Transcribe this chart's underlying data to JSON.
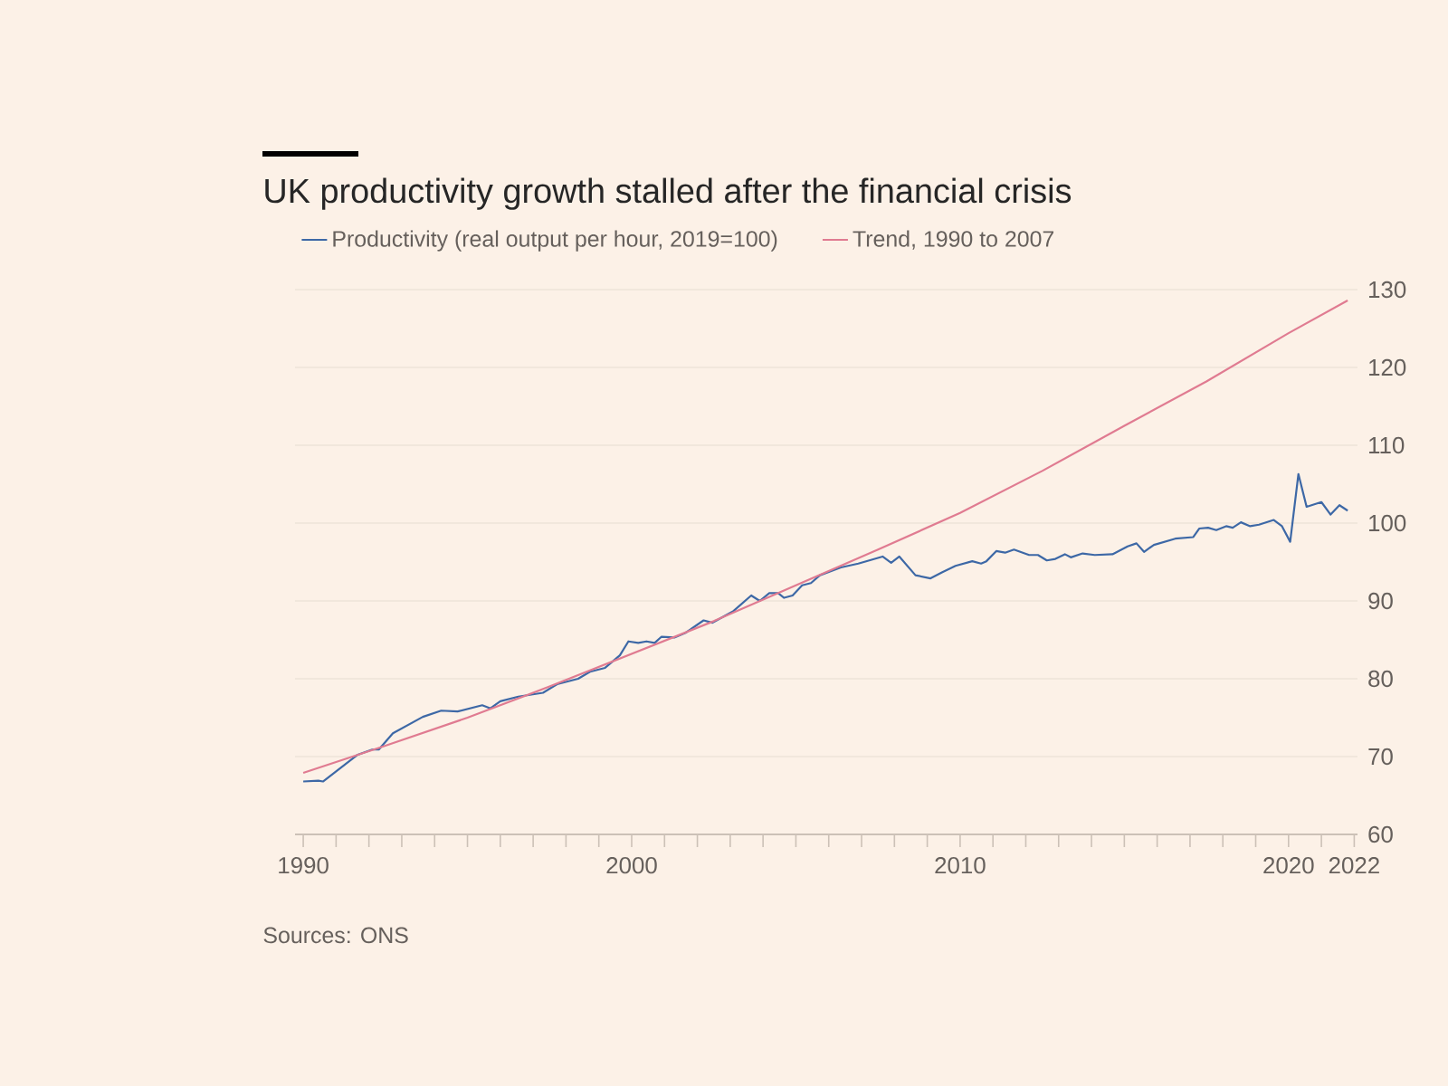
{
  "chart_data": {
    "type": "line",
    "title": "UK productivity growth stalled after the financial crisis",
    "legend": "top left",
    "grid": "y",
    "line_style": "solid",
    "marker": "none",
    "xlim": [
      1989.75,
      2022.1
    ],
    "ylim": [
      60,
      130
    ],
    "yticks": [
      60,
      70,
      80,
      90,
      100,
      110,
      120,
      130
    ],
    "xticks": [
      1990,
      {
        "value": 1991,
        "label": null
      },
      {
        "value": 1992,
        "label": null
      },
      {
        "value": 1993,
        "label": null
      },
      {
        "value": 1994,
        "label": null
      },
      {
        "value": 1995,
        "label": null
      },
      {
        "value": 1996,
        "label": null
      },
      {
        "value": 1997,
        "label": null
      },
      {
        "value": 1998,
        "label": null
      },
      {
        "value": 1999,
        "label": null
      },
      2000,
      {
        "value": 2001,
        "label": null
      },
      {
        "value": 2002,
        "label": null
      },
      {
        "value": 2003,
        "label": null
      },
      {
        "value": 2004,
        "label": null
      },
      {
        "value": 2005,
        "label": null
      },
      {
        "value": 2006,
        "label": null
      },
      {
        "value": 2007,
        "label": null
      },
      {
        "value": 2008,
        "label": null
      },
      {
        "value": 2009,
        "label": null
      },
      2010,
      {
        "value": 2011,
        "label": null
      },
      {
        "value": 2012,
        "label": null
      },
      {
        "value": 2013,
        "label": null
      },
      {
        "value": 2014,
        "label": null
      },
      {
        "value": 2015,
        "label": null
      },
      {
        "value": 2016,
        "label": null
      },
      {
        "value": 2017,
        "label": null
      },
      {
        "value": 2018,
        "label": null
      },
      {
        "value": 2019,
        "label": null
      },
      2020,
      {
        "value": 2021,
        "label": null
      },
      2022
    ],
    "annotations": [
      "Sources: ONS"
    ],
    "series": [
      {
        "name": "Productivity (real output per hour, 2019=100)",
        "color": "#3d68a6",
        "x": [
          1990.0,
          1990.46,
          1990.6,
          1991.0,
          1991.64,
          1992.1,
          1992.3,
          1992.73,
          1993.64,
          1994.2,
          1994.7,
          1995.45,
          1995.7,
          1996.0,
          1996.55,
          1997.3,
          1997.73,
          1998.37,
          1998.73,
          1999.19,
          1999.64,
          1999.9,
          2000.2,
          2000.45,
          2000.7,
          2000.91,
          2001.3,
          2001.64,
          2002.19,
          2002.46,
          2003.1,
          2003.64,
          2003.9,
          2004.19,
          2004.46,
          2004.64,
          2004.9,
          2005.19,
          2005.46,
          2005.73,
          2006.37,
          2006.9,
          2007.64,
          2007.9,
          2008.15,
          2008.64,
          2009.1,
          2009.46,
          2009.86,
          2010.37,
          2010.64,
          2010.8,
          2011.1,
          2011.37,
          2011.64,
          2012.1,
          2012.37,
          2012.64,
          2012.9,
          2013.19,
          2013.37,
          2013.73,
          2014.1,
          2014.64,
          2015.1,
          2015.37,
          2015.6,
          2015.9,
          2016.55,
          2017.1,
          2017.28,
          2017.55,
          2017.8,
          2018.1,
          2018.3,
          2018.55,
          2018.83,
          2019.1,
          2019.55,
          2019.8,
          2020.05,
          2020.3,
          2020.55,
          2021.0,
          2021.28,
          2021.55,
          2021.8
        ],
        "values": [
          66.8,
          66.9,
          66.8,
          68.1,
          70.2,
          70.9,
          70.9,
          73.0,
          75.1,
          75.9,
          75.8,
          76.6,
          76.2,
          77.1,
          77.7,
          78.2,
          79.3,
          80.0,
          80.9,
          81.4,
          83.0,
          84.8,
          84.6,
          84.8,
          84.6,
          85.4,
          85.3,
          85.9,
          87.5,
          87.2,
          88.7,
          90.7,
          90.0,
          91.0,
          91.0,
          90.4,
          90.7,
          92.0,
          92.3,
          93.3,
          94.3,
          94.8,
          95.7,
          94.9,
          95.7,
          93.3,
          92.9,
          93.7,
          94.5,
          95.1,
          94.8,
          95.1,
          96.4,
          96.2,
          96.6,
          95.9,
          95.9,
          95.2,
          95.4,
          96.0,
          95.6,
          96.1,
          95.9,
          96.0,
          97.0,
          97.4,
          96.3,
          97.2,
          98.0,
          98.2,
          99.3,
          99.4,
          99.1,
          99.6,
          99.4,
          100.1,
          99.6,
          99.8,
          100.4,
          99.6,
          97.6,
          106.3,
          102.1,
          102.7,
          101.1,
          102.3,
          101.6
        ]
      },
      {
        "name": "Trend, 1990 to 2007",
        "color": "#e07b91",
        "x": [
          1990.0,
          1992.5,
          1995.0,
          1997.5,
          2000.0,
          2002.5,
          2005.0,
          2007.5,
          2010.0,
          2012.5,
          2015.0,
          2017.5,
          2020.0,
          2021.8
        ],
        "values": [
          67.9,
          71.4,
          75.0,
          79.0,
          83.2,
          87.4,
          92.0,
          96.6,
          101.3,
          106.7,
          112.5,
          118.2,
          124.4,
          128.6
        ]
      }
    ]
  }
}
